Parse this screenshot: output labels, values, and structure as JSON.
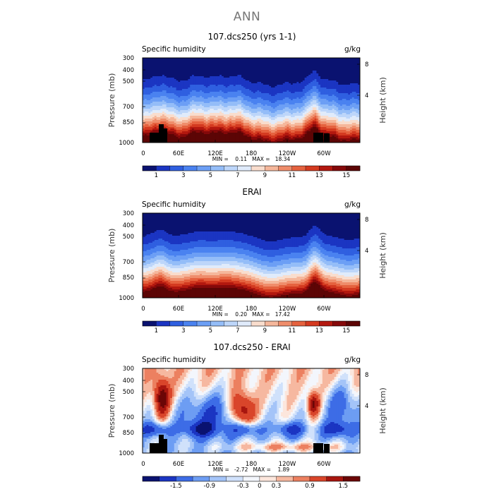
{
  "page": {
    "title": "ANN"
  },
  "panels": [
    {
      "title": "107.dcs250 (yrs 1-1)",
      "field_label": "Specific humidity",
      "units": "g/kg",
      "ylabel": "Pressure (mb)",
      "ylabel_right": "Height (km)",
      "minmax": "MIN =    0.11   MAX =   18.34",
      "colorbar_ticks": [
        "1",
        "3",
        "5",
        "7",
        "9",
        "11",
        "13",
        "15"
      ]
    },
    {
      "title": "ERAI",
      "field_label": "Specific humidity",
      "units": "g/kg",
      "ylabel": "Pressure (mb)",
      "ylabel_right": "Height (km)",
      "minmax": "MIN =    0.20   MAX =   17.42",
      "colorbar_ticks": [
        "1",
        "3",
        "5",
        "7",
        "9",
        "11",
        "13",
        "15"
      ]
    },
    {
      "title": "107.dcs250 - ERAI",
      "field_label": "Specific humidity",
      "units": "g/kg",
      "ylabel": "Pressure (mb)",
      "ylabel_right": "Height (km)",
      "minmax": "MIN =   -2.72   MAX =    1.89",
      "colorbar_ticks": [
        "-1.5",
        "-0.9",
        "-0.3",
        "0",
        "0.3",
        "0.9",
        "1.5"
      ]
    }
  ],
  "chart_data": [
    {
      "type": "heatmap",
      "title": "107.dcs250 (yrs 1-1)",
      "subtitle": "Specific humidity",
      "units": "g/kg",
      "ylabel": "Pressure (mb)",
      "ylabel_right": "Height (km)",
      "x_ticks": [
        "0",
        "60E",
        "120E",
        "180",
        "120W",
        "60W"
      ],
      "y_ticks": [
        "300",
        "400",
        "500",
        "700",
        "850",
        "1000"
      ],
      "y_right_ticks": [
        "8",
        "4"
      ],
      "min": 0.11,
      "max": 18.34,
      "contour_levels": [
        1,
        3,
        5,
        7,
        9,
        11,
        13,
        15
      ]
    },
    {
      "type": "heatmap",
      "title": "ERAI",
      "subtitle": "Specific humidity",
      "units": "g/kg",
      "ylabel": "Pressure (mb)",
      "ylabel_right": "Height (km)",
      "x_ticks": [
        "0",
        "60E",
        "120E",
        "180",
        "120W",
        "60W"
      ],
      "y_ticks": [
        "300",
        "400",
        "500",
        "700",
        "850",
        "1000"
      ],
      "y_right_ticks": [
        "8",
        "4"
      ],
      "min": 0.2,
      "max": 17.42,
      "contour_levels": [
        1,
        3,
        5,
        7,
        9,
        11,
        13,
        15
      ]
    },
    {
      "type": "heatmap",
      "title": "107.dcs250 - ERAI",
      "subtitle": "Specific humidity",
      "units": "g/kg",
      "ylabel": "Pressure (mb)",
      "ylabel_right": "Height (km)",
      "x_ticks": [
        "0",
        "60E",
        "120E",
        "180",
        "120W",
        "60W"
      ],
      "y_ticks": [
        "300",
        "400",
        "500",
        "700",
        "850",
        "1000"
      ],
      "y_right_ticks": [
        "8",
        "4"
      ],
      "min": -2.72,
      "max": 1.89,
      "contour_levels": [
        -1.5,
        -0.9,
        -0.3,
        0,
        0.3,
        0.9,
        1.5
      ]
    }
  ],
  "colors": {
    "abs_palette": [
      "#0a1270",
      "#1b35c2",
      "#2f5fe0",
      "#4a82f0",
      "#6c9ff5",
      "#94bdf8",
      "#bdd6fa",
      "#e0ebfb",
      "#f9ddcd",
      "#f5b79b",
      "#ef8d6b",
      "#e5623f",
      "#d43a20",
      "#b3180f",
      "#85090a",
      "#5c0505"
    ],
    "diff_palette": [
      "#0a1270",
      "#1b35c2",
      "#3d6ce6",
      "#6d9df3",
      "#a4c4f8",
      "#d0e1fb",
      "#f3f6fc",
      "#fce6dc",
      "#f6b8a0",
      "#ec8060",
      "#d9452a",
      "#a8160f",
      "#6b0606"
    ]
  }
}
